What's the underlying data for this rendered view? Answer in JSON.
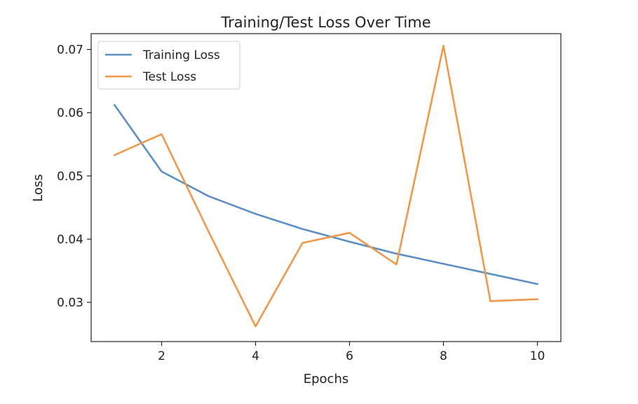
{
  "chart_data": {
    "type": "line",
    "title": "Training/Test Loss Over Time",
    "xlabel": "Epochs",
    "ylabel": "Loss",
    "x": [
      1,
      2,
      3,
      4,
      5,
      6,
      7,
      8,
      9,
      10
    ],
    "xlim": [
      0.5,
      10.5
    ],
    "ylim": [
      0.0238,
      0.0725
    ],
    "xticks": [
      2,
      4,
      6,
      8,
      10
    ],
    "yticks": [
      0.03,
      0.04,
      0.05,
      0.06,
      0.07
    ],
    "xtick_labels": [
      "2",
      "4",
      "6",
      "8",
      "10"
    ],
    "ytick_labels": [
      "0.03",
      "0.04",
      "0.05",
      "0.06",
      "0.07"
    ],
    "grid": false,
    "legend_position": "top-left",
    "series": [
      {
        "name": "Training Loss",
        "color": "#5b8fc4",
        "values": [
          0.0612,
          0.0507,
          0.0468,
          0.044,
          0.0416,
          0.0396,
          0.0377,
          0.0361,
          0.0345,
          0.0329
        ]
      },
      {
        "name": "Test Loss",
        "color": "#f0974a",
        "values": [
          0.0533,
          0.0566,
          0.0412,
          0.0262,
          0.0394,
          0.041,
          0.036,
          0.0706,
          0.0302,
          0.0305
        ]
      }
    ]
  }
}
